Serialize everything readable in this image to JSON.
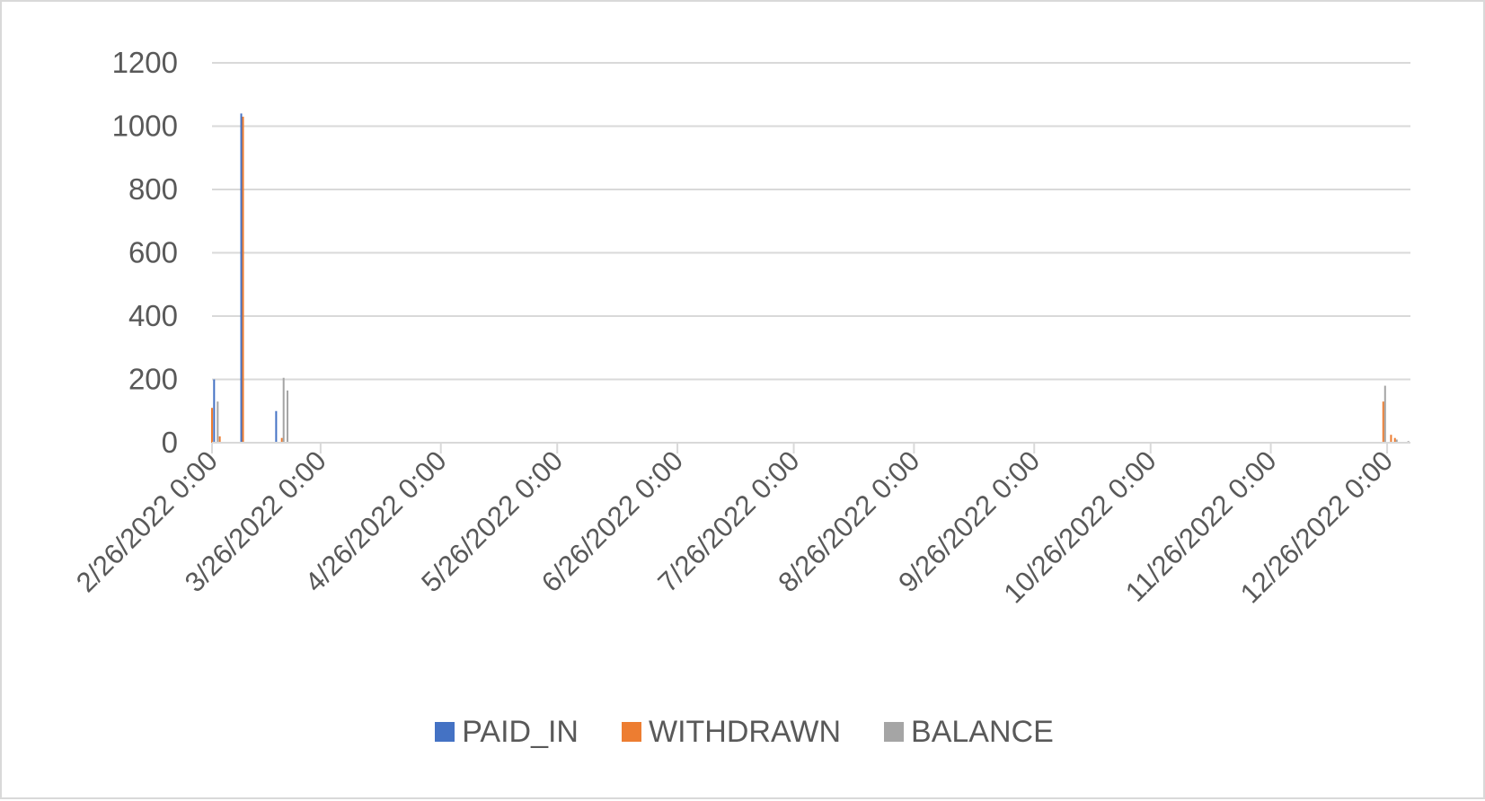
{
  "chart_data": {
    "type": "bar",
    "title": "",
    "xlabel": "",
    "ylabel": "",
    "ylim": [
      0,
      1200
    ],
    "y_ticks": [
      "0",
      "200",
      "400",
      "600",
      "800",
      "1000",
      "1200"
    ],
    "x_range": [
      "2022-02-26",
      "2023-01-01"
    ],
    "x_tick_dates": [
      "2022-02-26",
      "2022-03-26",
      "2022-04-26",
      "2022-05-26",
      "2022-06-26",
      "2022-07-26",
      "2022-08-26",
      "2022-09-26",
      "2022-10-26",
      "2022-11-26",
      "2022-12-26"
    ],
    "x_ticks": [
      "2/26/2022 0:00",
      "3/26/2022 0:00",
      "4/26/2022 0:00",
      "5/26/2022 0:00",
      "6/26/2022 0:00",
      "7/26/2022 0:00",
      "8/26/2022 0:00",
      "9/26/2022 0:00",
      "10/26/2022 0:00",
      "11/26/2022 0:00",
      "12/26/2022 0:00"
    ],
    "grid": true,
    "legend_position": "bottom",
    "series": [
      {
        "name": "PAID_IN",
        "color": "#4472c4",
        "points": [
          {
            "x": "2022-02-27",
            "y": 200
          },
          {
            "x": "2022-03-06",
            "y": 1040
          },
          {
            "x": "2022-03-15",
            "y": 100
          }
        ]
      },
      {
        "name": "WITHDRAWN",
        "color": "#ed7d31",
        "points": [
          {
            "x": "2022-02-26",
            "y": 110
          },
          {
            "x": "2022-02-28",
            "y": 20
          },
          {
            "x": "2022-03-06",
            "y": 1030
          },
          {
            "x": "2022-03-16",
            "y": 15
          },
          {
            "x": "2022-12-25",
            "y": 130
          },
          {
            "x": "2022-12-27",
            "y": 25
          },
          {
            "x": "2022-12-28",
            "y": 15
          }
        ]
      },
      {
        "name": "BALANCE",
        "color": "#a5a5a5",
        "points": [
          {
            "x": "2022-02-27",
            "y": 130
          },
          {
            "x": "2022-03-16",
            "y": 205
          },
          {
            "x": "2022-03-17",
            "y": 165
          },
          {
            "x": "2022-12-25",
            "y": 180
          },
          {
            "x": "2022-12-28",
            "y": 10
          },
          {
            "x": "2022-12-31",
            "y": 5
          }
        ]
      }
    ]
  }
}
